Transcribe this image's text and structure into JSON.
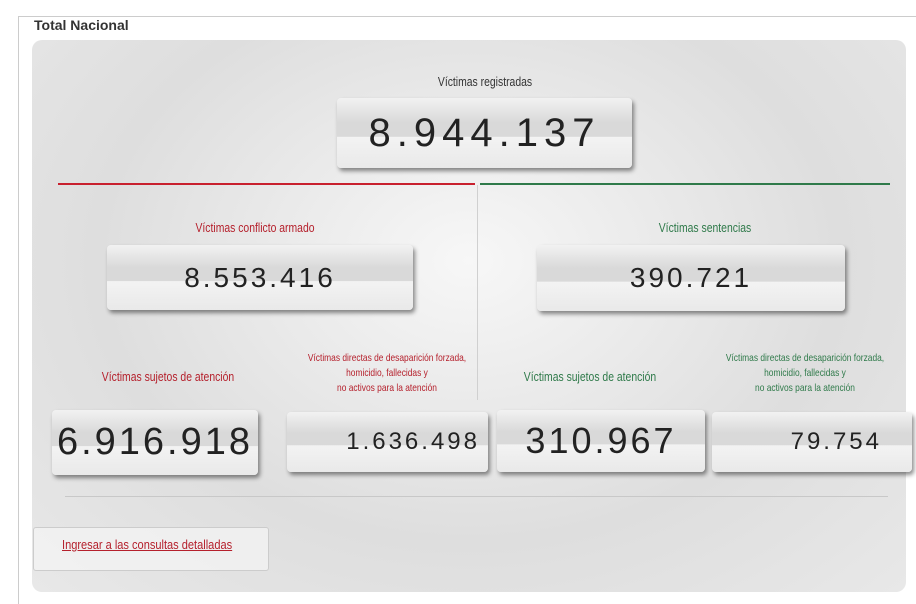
{
  "panel": {
    "legend": "Total Nacional",
    "registered": {
      "label": "Víctimas registradas",
      "value": "8.944.137"
    },
    "left": {
      "label": "Víctimas conflicto armado",
      "value": "8.553.416",
      "attention": {
        "label": "Víctimas sujetos de atención",
        "value": "6.916.918"
      },
      "inactive": {
        "label_lines": [
          "Víctimas directas de desaparición forzada,",
          "homicidio, fallecidas y",
          "no activos para la atención"
        ],
        "value": "1.636.498"
      }
    },
    "right": {
      "label": "Víctimas sentencias",
      "value": "390.721",
      "attention": {
        "label": "Víctimas sujetos de atención",
        "value": "310.967"
      },
      "inactive": {
        "label_lines": [
          "Víctimas directas de desaparición forzada,",
          "homicidio, fallecidas y",
          "no activos para la atención"
        ],
        "value": "79.754"
      }
    },
    "link": "Ingresar a las consultas detalladas"
  }
}
